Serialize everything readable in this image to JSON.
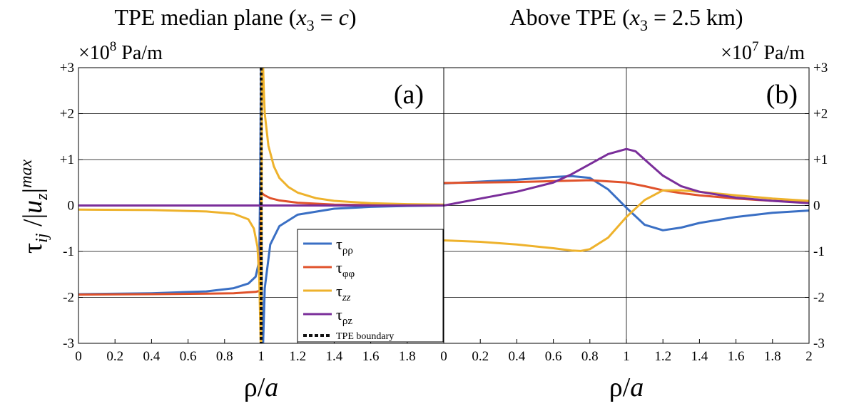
{
  "figure": {
    "ylabel": {
      "base": "τ",
      "sub": "ij",
      "rest": " /|",
      "u": "u",
      "usub": "z",
      "bar": "|",
      "sup": "max"
    },
    "xlabel_a": {
      "rho": "ρ",
      "slash": "/",
      "a": "a"
    },
    "xlabel_b": {
      "rho": "ρ",
      "slash": "/",
      "a": "a"
    }
  },
  "panels": {
    "a": {
      "title_pre": "TPE median plane (",
      "title_x": "x",
      "title_sub": "3",
      "title_eq": " = ",
      "title_c": "c",
      "title_post": ")",
      "unit_times": "×10",
      "unit_exp": "8",
      "unit_rest": " Pa/m",
      "panel_label": "(a)"
    },
    "b": {
      "title_pre": "Above TPE (",
      "title_x": "x",
      "title_sub": "3",
      "title_eq": " = 2.5 km)",
      "unit_times": "×10",
      "unit_exp": "7",
      "unit_rest": " Pa/m",
      "panel_label": "(b)"
    }
  },
  "legend": {
    "items": [
      {
        "sym": "τ",
        "sub": "ρρ",
        "sub_italic": false,
        "color": "#3a6fc4"
      },
      {
        "sym": "τ",
        "sub": "φφ",
        "sub_italic": false,
        "color": "#e0522b"
      },
      {
        "sym": "τ",
        "sub": "zz",
        "sub_italic": true,
        "color": "#eeb22c"
      },
      {
        "sym": "τ",
        "sub": "ρz",
        "sub_italic": "mixed",
        "color": "#7a2e9a"
      }
    ],
    "boundary_label": "TPE boundary"
  },
  "chart_data": [
    {
      "type": "line",
      "panel": "a",
      "xlim": [
        0,
        2
      ],
      "ylim": [
        -3,
        3
      ],
      "x_ticks": [
        "0",
        "0.2",
        "0.4",
        "0.6",
        "0.8",
        "1",
        "1.2",
        "1.4",
        "1.6",
        "1.8"
      ],
      "y_ticks": [
        "-3",
        "-2",
        "-1",
        "0",
        "+1",
        "+2",
        "+3"
      ],
      "y_tick_side": "left",
      "grid": "horizontal",
      "series": [
        {
          "name": "τρρ",
          "color": "#3a6fc4",
          "x": [
            0,
            0.4,
            0.7,
            0.85,
            0.93,
            0.97,
            0.99,
            0.995,
            1.0,
            1.005,
            1.01,
            1.02,
            1.05,
            1.1,
            1.2,
            1.4,
            1.6,
            1.8,
            2.0
          ],
          "y": [
            -1.93,
            -1.91,
            -1.87,
            -1.8,
            -1.7,
            -1.55,
            -1.2,
            0.5,
            3.5,
            -3.5,
            -3.1,
            -1.8,
            -0.85,
            -0.45,
            -0.2,
            -0.07,
            -0.03,
            -0.01,
            0
          ]
        },
        {
          "name": "τφφ",
          "color": "#e0522b",
          "x": [
            0,
            0.4,
            0.7,
            0.85,
            0.93,
            0.97,
            0.99,
            0.995,
            1.0,
            1.005,
            1.01,
            1.02,
            1.05,
            1.1,
            1.2,
            1.4,
            1.6,
            1.8,
            2.0
          ],
          "y": [
            -1.94,
            -1.93,
            -1.92,
            -1.91,
            -1.89,
            -1.88,
            -1.86,
            -1.8,
            0.2,
            0.27,
            0.25,
            0.22,
            0.16,
            0.11,
            0.06,
            0.02,
            0.01,
            0.0,
            0
          ]
        },
        {
          "name": "τzz",
          "color": "#eeb22c",
          "x": [
            0,
            0.4,
            0.7,
            0.85,
            0.93,
            0.96,
            0.98,
            0.99,
            0.995,
            1.0,
            1.005,
            1.01,
            1.015,
            1.02,
            1.04,
            1.07,
            1.1,
            1.15,
            1.2,
            1.3,
            1.4,
            1.6,
            1.8,
            2.0
          ],
          "y": [
            -0.09,
            -0.1,
            -0.13,
            -0.18,
            -0.3,
            -0.5,
            -0.9,
            -1.6,
            -2.5,
            -3.5,
            3.5,
            3.1,
            2.5,
            2.0,
            1.3,
            0.85,
            0.6,
            0.4,
            0.28,
            0.16,
            0.1,
            0.05,
            0.03,
            0.02
          ]
        },
        {
          "name": "τρz",
          "color": "#7a2e9a",
          "x": [
            0,
            0.5,
            1.0,
            1.5,
            2.0
          ],
          "y": [
            0,
            0,
            0,
            0,
            0
          ]
        }
      ],
      "boundary_x": 1.0,
      "boundary_color": "#111111"
    },
    {
      "type": "line",
      "panel": "b",
      "xlim": [
        0,
        2
      ],
      "ylim": [
        -3,
        3
      ],
      "x_ticks": [
        "0",
        "0.2",
        "0.4",
        "0.6",
        "0.8",
        "1",
        "1.2",
        "1.4",
        "1.6",
        "1.8",
        "2"
      ],
      "y_ticks": [
        "-3",
        "-2",
        "-1",
        "0",
        "+1",
        "+2",
        "+3"
      ],
      "y_tick_side": "right",
      "grid": "horizontal",
      "vline_x": 1.0,
      "series": [
        {
          "name": "τρρ",
          "color": "#3a6fc4",
          "x": [
            0,
            0.2,
            0.4,
            0.6,
            0.7,
            0.8,
            0.9,
            1.0,
            1.1,
            1.2,
            1.3,
            1.4,
            1.6,
            1.8,
            2.0
          ],
          "y": [
            0.48,
            0.52,
            0.56,
            0.62,
            0.64,
            0.6,
            0.35,
            -0.05,
            -0.42,
            -0.54,
            -0.48,
            -0.38,
            -0.25,
            -0.16,
            -0.11
          ]
        },
        {
          "name": "τφφ",
          "color": "#e0522b",
          "x": [
            0,
            0.2,
            0.4,
            0.6,
            0.8,
            1.0,
            1.1,
            1.2,
            1.3,
            1.4,
            1.6,
            1.8,
            2.0
          ],
          "y": [
            0.49,
            0.5,
            0.51,
            0.53,
            0.55,
            0.5,
            0.42,
            0.33,
            0.27,
            0.22,
            0.15,
            0.1,
            0.07
          ]
        },
        {
          "name": "τzz",
          "color": "#eeb22c",
          "x": [
            0,
            0.2,
            0.4,
            0.6,
            0.7,
            0.75,
            0.8,
            0.9,
            1.0,
            1.1,
            1.2,
            1.3,
            1.4,
            1.6,
            1.8,
            2.0
          ],
          "y": [
            -0.76,
            -0.79,
            -0.85,
            -0.93,
            -0.98,
            -0.99,
            -0.95,
            -0.7,
            -0.25,
            0.12,
            0.33,
            0.33,
            0.3,
            0.22,
            0.15,
            0.1
          ]
        },
        {
          "name": "τρz",
          "color": "#7a2e9a",
          "x": [
            0,
            0.2,
            0.4,
            0.6,
            0.7,
            0.8,
            0.9,
            1.0,
            1.05,
            1.1,
            1.2,
            1.3,
            1.4,
            1.6,
            1.8,
            2.0
          ],
          "y": [
            0.0,
            0.15,
            0.3,
            0.5,
            0.68,
            0.9,
            1.12,
            1.23,
            1.18,
            1.0,
            0.65,
            0.42,
            0.3,
            0.17,
            0.1,
            0.05
          ]
        }
      ]
    }
  ]
}
